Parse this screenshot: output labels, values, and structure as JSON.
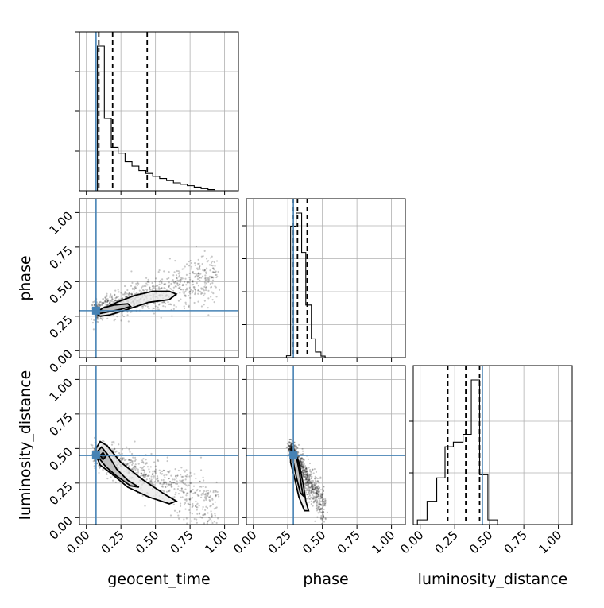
{
  "chart_data": {
    "type": "corner",
    "parameters": [
      "geocent_time",
      "phase",
      "luminosity_distance"
    ],
    "truths": {
      "geocent_time": 0.07,
      "phase": 0.29,
      "luminosity_distance": 0.45
    },
    "axis_range": [
      -0.05,
      1.1
    ],
    "ticks": [
      0.0,
      0.25,
      0.5,
      0.75,
      1.0
    ],
    "tick_labels": [
      "0.00",
      "0.25",
      "0.50",
      "0.75",
      "1.00"
    ],
    "grid": true,
    "truth_color": "#4682b4",
    "diagonal": [
      {
        "parameter": "geocent_time",
        "quantiles": [
          0.09,
          0.19,
          0.44
        ],
        "bin_edges": [
          0.08,
          0.13,
          0.18,
          0.23,
          0.28,
          0.33,
          0.38,
          0.43,
          0.48,
          0.53,
          0.58,
          0.63,
          0.68,
          0.73,
          0.78,
          0.83,
          0.88,
          0.93
        ],
        "counts": [
          1.0,
          0.5,
          0.3,
          0.26,
          0.2,
          0.17,
          0.14,
          0.12,
          0.1,
          0.085,
          0.07,
          0.055,
          0.045,
          0.035,
          0.025,
          0.015,
          0.008
        ]
      },
      {
        "parameter": "phase",
        "quantiles": [
          0.29,
          0.32,
          0.39
        ],
        "bin_edges": [
          0.24,
          0.27,
          0.31,
          0.35,
          0.38,
          0.42,
          0.45,
          0.49,
          0.52
        ],
        "counts": [
          0.01,
          0.7,
          0.77,
          0.56,
          0.28,
          0.1,
          0.03,
          0.008
        ]
      },
      {
        "parameter": "luminosity_distance",
        "quantiles": [
          0.2,
          0.33,
          0.43
        ],
        "bin_edges": [
          -0.02,
          0.05,
          0.12,
          0.18,
          0.24,
          0.31,
          0.37,
          0.43,
          0.49,
          0.56
        ],
        "counts": [
          0.03,
          0.15,
          0.3,
          0.5,
          0.53,
          0.58,
          0.93,
          0.32,
          0.03
        ]
      }
    ],
    "panels_2d": [
      {
        "x": "geocent_time",
        "y": "phase",
        "samples_trend": {
          "x_range": [
            0.06,
            0.95
          ],
          "y_at_start": 0.29,
          "y_at_end": 0.55,
          "spread": 0.06
        },
        "contours": [
          [
            [
              0.07,
              0.27
            ],
            [
              0.12,
              0.3
            ],
            [
              0.22,
              0.35
            ],
            [
              0.35,
              0.4
            ],
            [
              0.48,
              0.43
            ],
            [
              0.6,
              0.43
            ],
            [
              0.65,
              0.41
            ],
            [
              0.6,
              0.37
            ],
            [
              0.45,
              0.35
            ],
            [
              0.3,
              0.3
            ],
            [
              0.17,
              0.26
            ],
            [
              0.1,
              0.25
            ],
            [
              0.07,
              0.27
            ]
          ],
          [
            [
              0.08,
              0.28
            ],
            [
              0.12,
              0.31
            ],
            [
              0.2,
              0.33
            ],
            [
              0.3,
              0.34
            ],
            [
              0.32,
              0.32
            ],
            [
              0.25,
              0.3
            ],
            [
              0.15,
              0.28
            ],
            [
              0.1,
              0.27
            ],
            [
              0.08,
              0.28
            ]
          ]
        ]
      },
      {
        "x": "geocent_time",
        "y": "luminosity_distance",
        "samples_trend": {
          "x_range": [
            0.06,
            0.95
          ],
          "y_at_start": 0.46,
          "y_at_end": 0.08,
          "spread": 0.07
        },
        "contours": [
          [
            [
              0.07,
              0.5
            ],
            [
              0.1,
              0.55
            ],
            [
              0.15,
              0.52
            ],
            [
              0.25,
              0.4
            ],
            [
              0.4,
              0.28
            ],
            [
              0.55,
              0.18
            ],
            [
              0.65,
              0.12
            ],
            [
              0.6,
              0.1
            ],
            [
              0.45,
              0.15
            ],
            [
              0.3,
              0.22
            ],
            [
              0.18,
              0.32
            ],
            [
              0.1,
              0.38
            ],
            [
              0.07,
              0.45
            ],
            [
              0.07,
              0.5
            ]
          ],
          [
            [
              0.08,
              0.48
            ],
            [
              0.11,
              0.51
            ],
            [
              0.16,
              0.45
            ],
            [
              0.22,
              0.35
            ],
            [
              0.3,
              0.27
            ],
            [
              0.38,
              0.22
            ],
            [
              0.32,
              0.23
            ],
            [
              0.22,
              0.3
            ],
            [
              0.14,
              0.37
            ],
            [
              0.1,
              0.42
            ],
            [
              0.08,
              0.48
            ]
          ],
          [
            [
              0.1,
              0.45
            ],
            [
              0.12,
              0.47
            ],
            [
              0.14,
              0.44
            ],
            [
              0.12,
              0.42
            ],
            [
              0.1,
              0.45
            ]
          ]
        ]
      },
      {
        "x": "phase",
        "y": "luminosity_distance",
        "samples_trend": {
          "x_range": [
            0.27,
            0.52
          ],
          "y_at_start": 0.5,
          "y_at_end": 0.05,
          "spread": 0.05
        },
        "contours": [
          [
            [
              0.27,
              0.45
            ],
            [
              0.3,
              0.48
            ],
            [
              0.33,
              0.4
            ],
            [
              0.36,
              0.25
            ],
            [
              0.38,
              0.12
            ],
            [
              0.4,
              0.05
            ],
            [
              0.37,
              0.05
            ],
            [
              0.33,
              0.15
            ],
            [
              0.3,
              0.28
            ],
            [
              0.27,
              0.4
            ],
            [
              0.27,
              0.45
            ]
          ],
          [
            [
              0.29,
              0.44
            ],
            [
              0.31,
              0.45
            ],
            [
              0.33,
              0.35
            ],
            [
              0.35,
              0.22
            ],
            [
              0.36,
              0.16
            ],
            [
              0.34,
              0.18
            ],
            [
              0.31,
              0.3
            ],
            [
              0.29,
              0.4
            ],
            [
              0.29,
              0.44
            ]
          ]
        ]
      }
    ]
  }
}
